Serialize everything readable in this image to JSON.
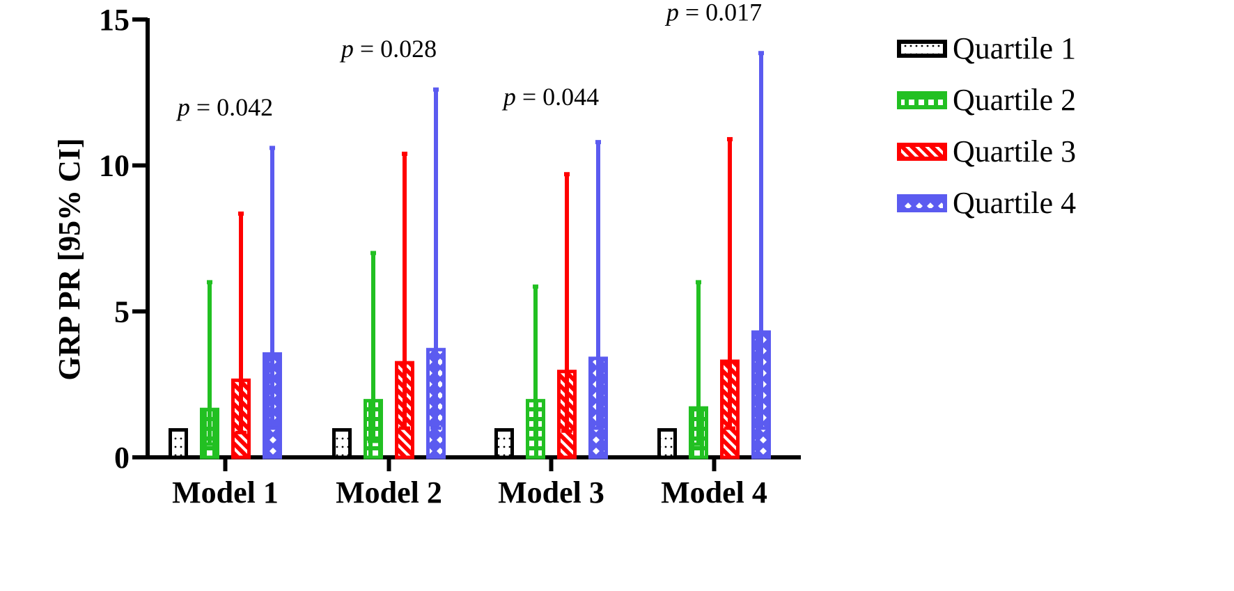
{
  "chart_data": {
    "type": "bar",
    "ylabel": "GRP  PR  [95%  CI]",
    "ylim": [
      0,
      15
    ],
    "yticks": [
      0,
      5,
      10,
      15
    ],
    "categories": [
      "Model 1",
      "Model 2",
      "Model 3",
      "Model 4"
    ],
    "series": [
      {
        "name": "Quartile 1",
        "color": "#000000",
        "pattern": "dots",
        "values": [
          1.0,
          1.0,
          1.0,
          1.0
        ],
        "ci_upper": [
          null,
          null,
          null,
          null
        ],
        "ci_lower": [
          null,
          null,
          null,
          null
        ]
      },
      {
        "name": "Quartile 2",
        "color": "#22c022",
        "pattern": "squares",
        "values": [
          1.7,
          2.0,
          2.0,
          1.75
        ],
        "ci_upper": [
          6.0,
          7.0,
          5.85,
          6.0
        ],
        "ci_lower": [
          0.45,
          0.55,
          0.65,
          0.45
        ]
      },
      {
        "name": "Quartile 3",
        "color": "#ff0000",
        "pattern": "diagonal",
        "values": [
          2.7,
          3.3,
          3.0,
          3.35
        ],
        "ci_upper": [
          8.35,
          10.4,
          9.7,
          10.9
        ],
        "ci_lower": [
          0.85,
          1.0,
          0.9,
          1.0
        ]
      },
      {
        "name": "Quartile 4",
        "color": "#5b5bf0",
        "pattern": "diamonds",
        "values": [
          3.6,
          3.75,
          3.45,
          4.35
        ],
        "ci_upper": [
          10.6,
          12.6,
          10.8,
          13.85
        ],
        "ci_lower": [
          1.0,
          1.0,
          1.0,
          1.0
        ]
      }
    ],
    "annotations": [
      {
        "category": "Model 1",
        "p_symbol": "p",
        "text": " = 0.042",
        "y": 12.0
      },
      {
        "category": "Model 2",
        "p_symbol": "p",
        "text": " = 0.028",
        "y": 14.0
      },
      {
        "category": "Model 3",
        "p_symbol": "p",
        "text": " = 0.044",
        "y": 12.35
      },
      {
        "category": "Model 4",
        "p_symbol": "p",
        "text": " = 0.017",
        "y": 15.25
      }
    ],
    "legend_position": "right"
  }
}
